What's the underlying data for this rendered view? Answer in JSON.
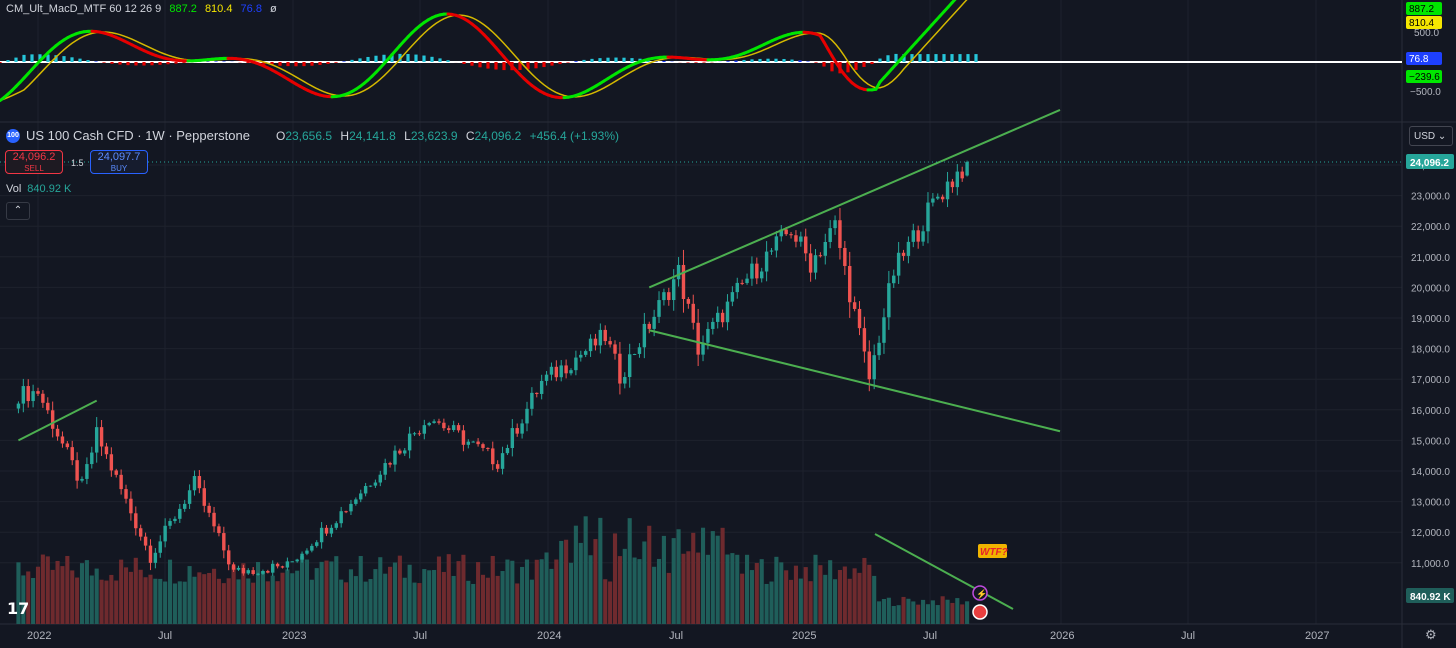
{
  "indicator": {
    "name": "CM_Ult_MacD_MTF 60 12 26 9",
    "macd_value": "887.2",
    "signal_value": "810.4",
    "hist_value": "76.8",
    "extra": "ø",
    "axis_labels": [
      "500.0",
      "−500.0"
    ],
    "badges": {
      "macd": "887.2",
      "signal": "810.4",
      "hist": "76.8",
      "low": "−239.6"
    },
    "colors": {
      "macd_up": "#00e600",
      "macd_down": "#e60000",
      "signal": "#d4b800",
      "hist_up_strong": "#26c6da",
      "hist_up_weak": "#1e40ff",
      "hist_down": "#e60000"
    }
  },
  "symbol": {
    "badge": "100",
    "title": "US 100 Cash CFD · 1W · Pepperstone",
    "ohlc": [
      {
        "k": "O",
        "v": "23,656.5"
      },
      {
        "k": "H",
        "v": "24,141.8"
      },
      {
        "k": "L",
        "v": "23,623.9"
      },
      {
        "k": "C",
        "v": "24,096.2"
      }
    ],
    "change": "+456.4 (+1.93%)"
  },
  "trade": {
    "sell_price": "24,096.2",
    "sell_label": "SELL",
    "buy_price": "24,097.7",
    "buy_label": "BUY",
    "spread": "1.5"
  },
  "volume": {
    "label": "Vol",
    "value": "840.92 K"
  },
  "currency": "USD",
  "price_badge": "24,096.2",
  "volume_badge": "840.92 K",
  "annotation": "WTF?",
  "logo": "17",
  "chart_data": {
    "type": "candlestick",
    "interval": "1W",
    "price_axis": {
      "ticks": [
        "24,000.0",
        "23,000.0",
        "22,000.0",
        "21,000.0",
        "20,000.0",
        "19,000.0",
        "18,000.0",
        "17,000.0",
        "16,000.0",
        "15,000.0",
        "14,000.0",
        "13,000.0",
        "12,000.0",
        "11,000.0"
      ],
      "range": [
        10000,
        25500
      ]
    },
    "time_axis": {
      "labels": [
        "2022",
        "Jul",
        "2023",
        "Jul",
        "2024",
        "Jul",
        "2025",
        "Jul",
        "2026",
        "Jul",
        "2027"
      ]
    },
    "anchors": [
      [
        "2021-12-06",
        16500
      ],
      [
        "2022-01-03",
        16600
      ],
      [
        "2022-03-07",
        13500
      ],
      [
        "2022-03-28",
        15200
      ],
      [
        "2022-06-13",
        11200
      ],
      [
        "2022-08-15",
        13600
      ],
      [
        "2022-10-10",
        10700
      ],
      [
        "2022-12-26",
        10900
      ],
      [
        "2023-03-20",
        12800
      ],
      [
        "2023-07-17",
        15800
      ],
      [
        "2023-10-23",
        14300
      ],
      [
        "2023-12-25",
        16900
      ],
      [
        "2024-03-25",
        18400
      ],
      [
        "2024-04-15",
        17100
      ],
      [
        "2024-07-08",
        20500
      ],
      [
        "2024-08-05",
        18000
      ],
      [
        "2024-10-14",
        20300
      ],
      [
        "2024-12-16",
        21900
      ],
      [
        "2025-01-13",
        20800
      ],
      [
        "2025-02-17",
        22000
      ],
      [
        "2025-04-07",
        17000
      ],
      [
        "2025-05-12",
        20500
      ],
      [
        "2025-07-14",
        23000
      ],
      [
        "2025-08-25",
        24096
      ]
    ],
    "last": {
      "o": 23656.5,
      "h": 24141.8,
      "l": 23623.9,
      "c": 24096.2
    },
    "volume_last": "840.92 K",
    "trendlines": [
      {
        "from": [
          "2024-05-27",
          20000
        ],
        "to": [
          "2026-01-05",
          25800
        ]
      },
      {
        "from": [
          "2024-05-27",
          18600
        ],
        "to": [
          "2026-01-05",
          15300
        ]
      },
      {
        "from": [
          "2021-12-06",
          15000
        ],
        "to": [
          "2022-03-28",
          16300
        ]
      }
    ]
  }
}
